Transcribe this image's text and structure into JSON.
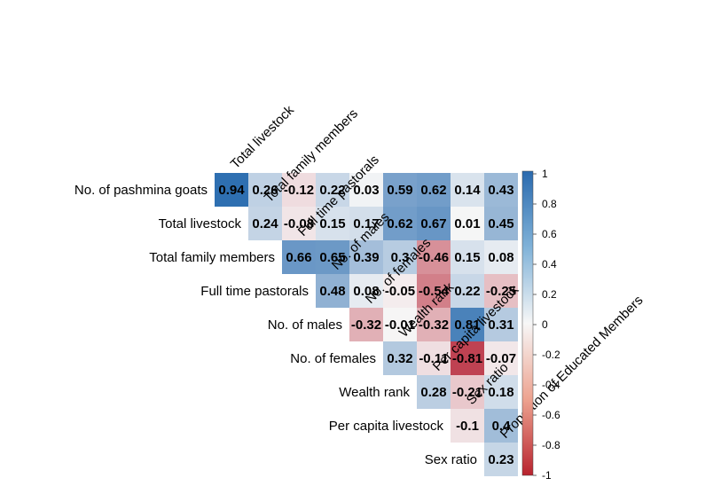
{
  "chart_data": {
    "type": "heatmap",
    "rows": [
      "No. of pashmina goats",
      "Total livestock",
      "Total family members",
      "Full time pastorals",
      "No. of males",
      "No. of females",
      "Wealth rank",
      "Per capita livestock",
      "Sex ratio"
    ],
    "columns": [
      "Total livestock",
      "Total family members",
      "Full time pastorals",
      "No. of males",
      "No. of females",
      "Wealth rank",
      "Per capita livestock",
      "Sex ratio",
      "Proportion of Educated Members"
    ],
    "values": [
      [
        0.94,
        0.26,
        -0.12,
        0.22,
        0.03,
        0.59,
        0.62,
        0.14,
        0.43
      ],
      [
        null,
        0.24,
        -0.08,
        0.15,
        0.17,
        0.62,
        0.67,
        0.01,
        0.45
      ],
      [
        null,
        null,
        0.66,
        0.65,
        0.39,
        0.3,
        -0.46,
        0.15,
        0.08
      ],
      [
        null,
        null,
        null,
        0.48,
        0.08,
        -0.05,
        -0.54,
        0.22,
        -0.25
      ],
      [
        null,
        null,
        null,
        null,
        -0.32,
        -0.01,
        -0.32,
        0.81,
        0.31
      ],
      [
        null,
        null,
        null,
        null,
        null,
        0.32,
        -0.11,
        -0.81,
        -0.07
      ],
      [
        null,
        null,
        null,
        null,
        null,
        null,
        0.28,
        -0.21,
        0.18
      ],
      [
        null,
        null,
        null,
        null,
        null,
        null,
        null,
        -0.1,
        0.4
      ],
      [
        null,
        null,
        null,
        null,
        null,
        null,
        null,
        null,
        0.23
      ]
    ],
    "colorbar": {
      "range": [
        -1,
        1
      ],
      "ticks": [
        1,
        0.8,
        0.6,
        0.4,
        0.2,
        0,
        -0.2,
        -0.4,
        -0.6,
        -0.8,
        -1
      ],
      "tick_labels": [
        "1",
        "0.8",
        "0.6",
        "0.4",
        "0.2",
        "0",
        "-0.2",
        "-0.4",
        "-0.6",
        "-0.8",
        "-1"
      ],
      "colors": {
        "high": "#2166ac",
        "mid": "#f7f7f7",
        "low": "#b2182b"
      }
    }
  }
}
